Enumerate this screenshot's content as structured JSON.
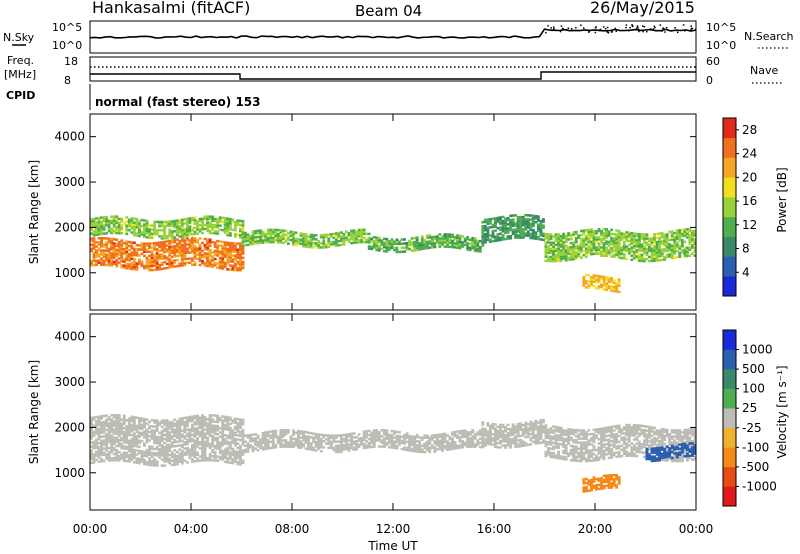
{
  "header": {
    "station": "Hankasalmi (fitACF)",
    "beam": "Beam 04",
    "date": "26/May/2015"
  },
  "strips": {
    "nsky_label": "N.Sky",
    "nsky_ticks": [
      "10^5",
      "10^0"
    ],
    "nsearch_label": "N.Search",
    "nsearch_ticks": [
      "10^5",
      "10^0"
    ],
    "freq_label_1": "Freq.",
    "freq_label_2": "[MHz]",
    "freq_ticks": [
      "18",
      "8"
    ],
    "nave_label": "Nave",
    "nave_ticks": [
      "60",
      "0"
    ],
    "cpid_label": "CPID",
    "cpid_text": "normal (fast stereo) 153"
  },
  "colors": {
    "power_scale": [
      "#1a2ad8",
      "#2c5fb0",
      "#3a8a6a",
      "#4fae4f",
      "#9bd23a",
      "#f0e020",
      "#f5a623",
      "#f07020",
      "#e02a1a"
    ],
    "velocity_scale": [
      "#1a2ad8",
      "#2c5fb0",
      "#3a8a6a",
      "#4fae4f",
      "#bdbdb5",
      "#f0b030",
      "#f58a1a",
      "#e84a15",
      "#e01a1a"
    ]
  },
  "chart_data": [
    {
      "type": "heatmap",
      "name": "power",
      "xlabel": "Time UT",
      "ylabel": "Slant Range [km]",
      "xlim": [
        0,
        24
      ],
      "ylim": [
        180,
        4500
      ],
      "x_ticks": [
        "00:00",
        "04:00",
        "08:00",
        "12:00",
        "16:00",
        "20:00",
        "00:00"
      ],
      "y_ticks": [
        1000,
        2000,
        3000,
        4000
      ],
      "colorbar_label": "Power [dB]",
      "colorbar_ticks": [
        4,
        8,
        12,
        16,
        20,
        24,
        28
      ],
      "colorbar_range": [
        0,
        30
      ],
      "bands": [
        {
          "t0": 0.0,
          "t1": 6.0,
          "r0": 1800,
          "r1": 2200,
          "level": 14
        },
        {
          "t0": 0.0,
          "t1": 6.0,
          "r0": 1100,
          "r1": 1700,
          "level": 24
        },
        {
          "t0": 6.0,
          "t1": 11.0,
          "r0": 1600,
          "r1": 1900,
          "level": 14
        },
        {
          "t0": 11.0,
          "t1": 15.5,
          "r0": 1500,
          "r1": 1800,
          "level": 12
        },
        {
          "t0": 15.5,
          "t1": 18.0,
          "r0": 1700,
          "r1": 2200,
          "level": 10
        },
        {
          "t0": 18.0,
          "t1": 24.0,
          "r0": 1300,
          "r1": 1900,
          "level": 14
        },
        {
          "t0": 19.5,
          "t1": 21.0,
          "r0": 600,
          "r1": 900,
          "level": 20
        }
      ]
    },
    {
      "type": "heatmap",
      "name": "velocity",
      "xlabel": "Time UT",
      "ylabel": "Slant Range [km]",
      "xlim": [
        0,
        24
      ],
      "ylim": [
        180,
        4500
      ],
      "x_ticks": [
        "00:00",
        "04:00",
        "08:00",
        "12:00",
        "16:00",
        "20:00",
        "00:00"
      ],
      "y_ticks": [
        1000,
        2000,
        3000,
        4000
      ],
      "colorbar_label": "Velocity [m s⁻¹]",
      "colorbar_ticks": [
        "1000",
        "500",
        "100",
        "25",
        "-25",
        "-100",
        "-500",
        "-1000"
      ],
      "bands": [
        {
          "t0": 0.0,
          "t1": 6.0,
          "r0": 1200,
          "r1": 2200,
          "level": 0
        },
        {
          "t0": 6.0,
          "t1": 15.5,
          "r0": 1500,
          "r1": 1900,
          "level": 0
        },
        {
          "t0": 15.5,
          "t1": 18.0,
          "r0": 1600,
          "r1": 2100,
          "level": 0
        },
        {
          "t0": 18.0,
          "t1": 24.0,
          "r0": 1300,
          "r1": 2000,
          "level": 0
        },
        {
          "t0": 19.5,
          "t1": 21.0,
          "r0": 600,
          "r1": 900,
          "level": -150
        },
        {
          "t0": 22.0,
          "t1": 24.0,
          "r0": 1300,
          "r1": 1600,
          "level": 300
        }
      ]
    }
  ]
}
